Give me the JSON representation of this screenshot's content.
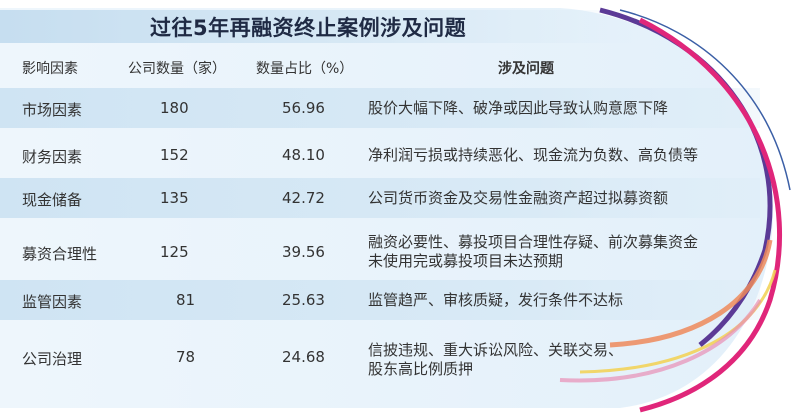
{
  "title": "过往5年再融资终止案例涉及问题",
  "table": {
    "headers": [
      "影响因素",
      "公司数量（家）",
      "数量占比（%）",
      "涉及问题"
    ],
    "rows": [
      {
        "factor": "市场因素",
        "count": "180",
        "ratio": "56.96",
        "issue": "股价大幅下降、破净或因此导致认购意愿下降"
      },
      {
        "factor": "财务因素",
        "count": "152",
        "ratio": "48.10",
        "issue": "净利润亏损或持续恶化、现金流为负数、高负债等"
      },
      {
        "factor": "现金储备",
        "count": "135",
        "ratio": "42.72",
        "issue": "公司货币资金及交易性金融资产超过拟募资额"
      },
      {
        "factor": "募资合理性",
        "count": "125",
        "ratio": "39.56",
        "issue": "融资必要性、募投项目合理性存疑、前次募集资金",
        "issue2": "未使用完或募投项目未达预期"
      },
      {
        "factor": "监管因素",
        "count": "81",
        "ratio": "25.63",
        "issue": "监管趋严、审核质疑，发行条件不达标"
      },
      {
        "factor": "公司治理",
        "count": "78",
        "ratio": "24.68",
        "issue": "信披违规、重大诉讼风险、关联交易、",
        "issue2": "股东高比例质押"
      }
    ]
  },
  "colors": {
    "band": "#d2e6f4",
    "panel": "#eaf4fb",
    "arc_purple": "#5b3a96",
    "arc_pink": "#e0267a",
    "arc_orange": "#ee8a5a",
    "arc_yellow": "#f2d35a",
    "title": "#1f2a44"
  }
}
